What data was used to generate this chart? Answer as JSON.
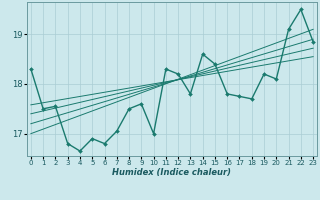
{
  "xlabel": "Humidex (Indice chaleur)",
  "x_data": [
    0,
    1,
    2,
    3,
    4,
    5,
    6,
    7,
    8,
    9,
    10,
    11,
    12,
    13,
    14,
    15,
    16,
    17,
    18,
    19,
    20,
    21,
    22,
    23
  ],
  "y_main": [
    18.3,
    17.5,
    17.55,
    16.8,
    16.65,
    16.9,
    16.8,
    17.05,
    17.5,
    17.6,
    17.0,
    18.3,
    18.2,
    17.8,
    18.6,
    18.4,
    17.8,
    17.75,
    17.7,
    18.2,
    18.1,
    19.1,
    19.5,
    18.85
  ],
  "xlim": [
    -0.3,
    23.3
  ],
  "ylim": [
    16.55,
    19.65
  ],
  "yticks": [
    17,
    18,
    19
  ],
  "xticks": [
    0,
    1,
    2,
    3,
    4,
    5,
    6,
    7,
    8,
    9,
    10,
    11,
    12,
    13,
    14,
    15,
    16,
    17,
    18,
    19,
    20,
    21,
    22,
    23
  ],
  "bg_color": "#cce8ec",
  "grid_color": "#aacdd4",
  "line_color": "#1a7a6e",
  "line_width": 1.0,
  "marker_size": 2.0,
  "trend_lines": [
    {
      "x0": 0,
      "y0": 17.58,
      "x1": 23,
      "y1": 18.55
    },
    {
      "x0": 0,
      "y0": 17.4,
      "x1": 23,
      "y1": 18.72
    },
    {
      "x0": 0,
      "y0": 17.2,
      "x1": 23,
      "y1": 18.9
    },
    {
      "x0": 0,
      "y0": 17.0,
      "x1": 23,
      "y1": 19.1
    }
  ]
}
